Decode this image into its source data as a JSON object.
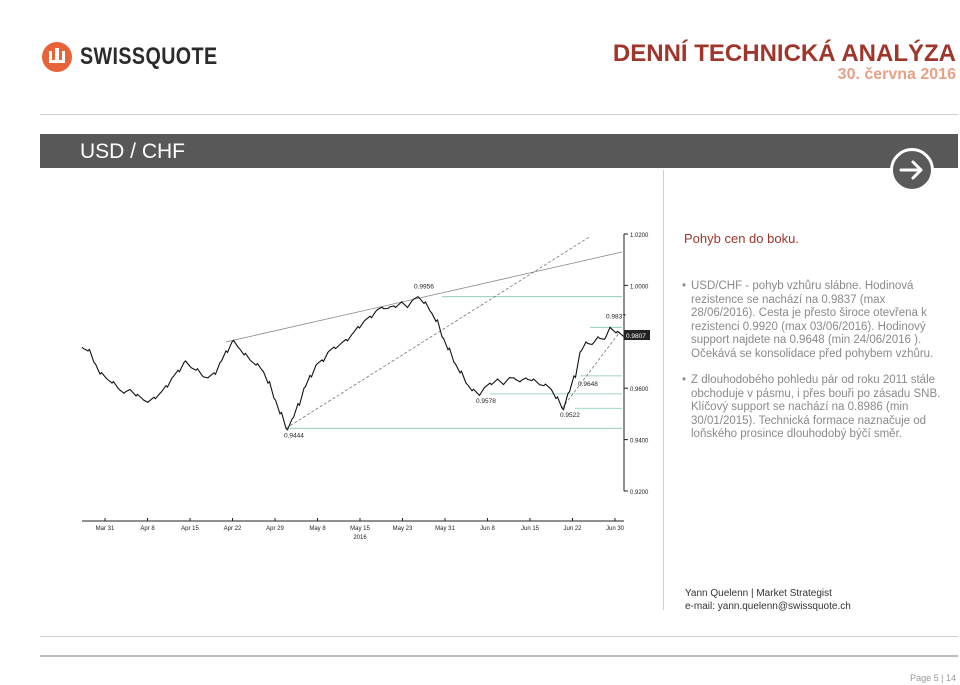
{
  "brand": {
    "name": "SWISSQUOTE",
    "logo_icon": "swissquote-logo-icon"
  },
  "header": {
    "title": "DENNÍ TECHNICKÁ ANALÝZA",
    "date": "30. června 2016"
  },
  "section": {
    "title": "USD / CHF",
    "arrow_icon": "arrow-right-icon"
  },
  "summary": "Pohyb cen do boku.",
  "bullets": [
    "USD/CHF - pohyb vzhůru slábne. Hodinová rezistence se nachází na 0.9837 (max 28/06/2016). Cesta je přesto široce otevřena k rezistenci 0.9920 (max 03/06/2016). Hodinový support najdete na 0.9648 (min 24/06/2016 ). Očekává se konsolidace před pohybem vzhůru.",
    "Z dlouhodobého pohledu pár od roku 2011 stále obchoduje v pásmu, i přes bouři po zásadu SNB. Klíčový support se nachází na 0.8986 (min 30/01/2015). Technická formace naznačuje od loňského prosince dlouhodobý býčí směr."
  ],
  "author": {
    "line1": "Yann Quelenn | Market Strategist",
    "line2": "e-mail: yann.quelenn@swissquote.ch"
  },
  "footer": {
    "page": "Page 5 | 14"
  },
  "chart_data": {
    "type": "line",
    "title": "",
    "xlabel": "",
    "ylabel": "",
    "x_ticks": [
      "Mar 31",
      "Apr 8",
      "Apr 15",
      "Apr 22",
      "Apr 29",
      "May 8",
      "May 15",
      "May 23",
      "May 31",
      "Jun 8",
      "Jun 15",
      "Jun 22",
      "Jun 30"
    ],
    "x_year_label": "2016",
    "y_ticks": [
      "1.0200",
      "1.0000",
      "0.9800",
      "0.9600",
      "0.9400",
      "0.9200"
    ],
    "ylim": [
      0.92,
      1.02
    ],
    "current_price_label": "0.9807",
    "annotations": [
      "0.9956",
      "0.9837",
      "0.9648",
      "0.9578",
      "0.9522",
      "0.9444"
    ],
    "series": [
      {
        "values": [
          0.976,
          0.9745,
          0.97,
          0.9655,
          0.964,
          0.962,
          0.96,
          0.958,
          0.9595,
          0.957,
          0.956,
          0.9545,
          0.9565,
          0.958,
          0.961,
          0.964,
          0.967,
          0.97,
          0.9685,
          0.967,
          0.965,
          0.964,
          0.966,
          0.97,
          0.9745,
          0.978,
          0.976,
          0.973,
          0.971,
          0.969,
          0.967,
          0.962,
          0.956,
          0.95,
          0.9444,
          0.948,
          0.954,
          0.96,
          0.965,
          0.969,
          0.971,
          0.974,
          0.976,
          0.977,
          0.979,
          0.981,
          0.984,
          0.986,
          0.988,
          0.99,
          0.9915,
          0.991,
          0.992,
          0.993,
          0.992,
          0.994,
          0.9956,
          0.993,
          0.99,
          0.986,
          0.98,
          0.975,
          0.97,
          0.966,
          0.962,
          0.959,
          0.9578,
          0.96,
          0.962,
          0.963,
          0.962,
          0.9635,
          0.964,
          0.9625,
          0.964,
          0.963,
          0.962,
          0.961,
          0.96,
          0.956,
          0.9522,
          0.958,
          0.9648,
          0.974,
          0.978,
          0.977,
          0.98,
          0.979,
          0.9837,
          0.9815,
          0.9807
        ]
      }
    ],
    "grid": false
  }
}
